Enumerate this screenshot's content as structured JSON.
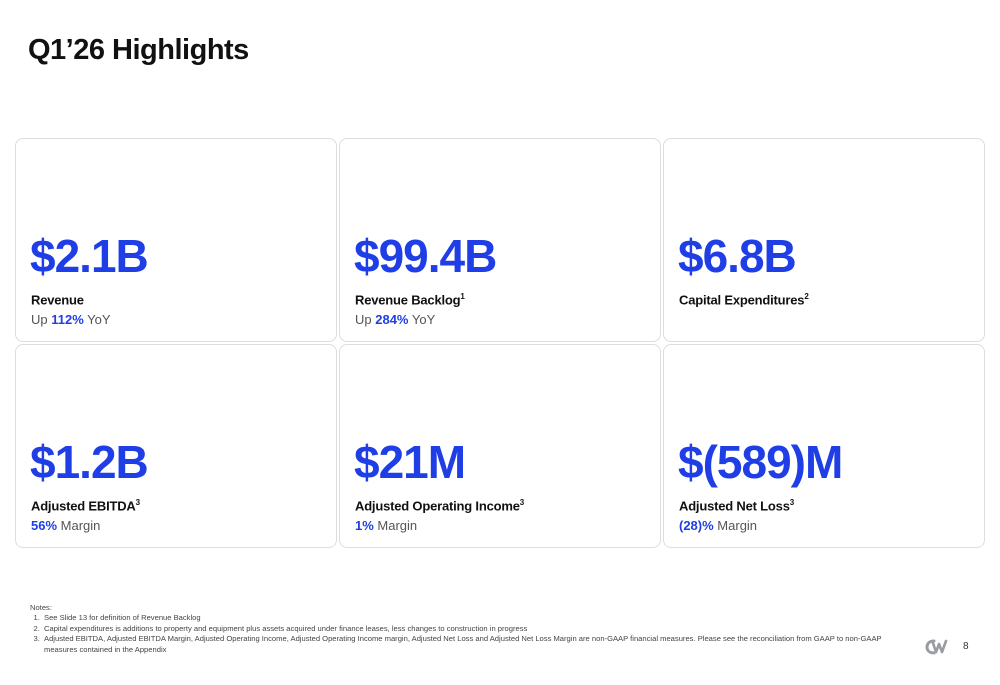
{
  "page": {
    "title": "Q1’26 Highlights",
    "number": "8"
  },
  "metrics": [
    {
      "value": "$2.1B",
      "label": "Revenue",
      "sup": "",
      "sub_prefix": "Up ",
      "sub_highlight": "112%",
      "sub_suffix": " YoY"
    },
    {
      "value": "$99.4B",
      "label": "Revenue Backlog",
      "sup": "1",
      "sub_prefix": "Up ",
      "sub_highlight": "284%",
      "sub_suffix": " YoY"
    },
    {
      "value": "$6.8B",
      "label": "Capital Expenditures",
      "sup": "2",
      "sub_prefix": "",
      "sub_highlight": "",
      "sub_suffix": ""
    },
    {
      "value": "$1.2B",
      "label": "Adjusted EBITDA",
      "sup": "3",
      "sub_prefix": "",
      "sub_highlight": "56%",
      "sub_suffix": " Margin"
    },
    {
      "value": "$21M",
      "label": "Adjusted Operating Income",
      "sup": "3",
      "sub_prefix": "",
      "sub_highlight": "1%",
      "sub_suffix": " Margin"
    },
    {
      "value": "$(589)M",
      "label": "Adjusted Net Loss",
      "sup": "3",
      "sub_prefix": "",
      "sub_highlight": "(28)%",
      "sub_suffix": " Margin"
    }
  ],
  "notes": {
    "heading": "Notes:",
    "items": [
      "See Slide 13 for definition of Revenue Backlog",
      "Capital expenditures is additions to property and equipment plus assets acquired under finance leases, less changes to construction in progress",
      "Adjusted EBITDA, Adjusted EBITDA Margin, Adjusted Operating Income, Adjusted Operating Income margin, Adjusted Net Loss and Adjusted Net Loss Margin are non-GAAP financial measures. Please see the reconciliation from GAAP to non-GAAP measures contained in the Appendix"
    ]
  },
  "colors": {
    "accent": "#1f3ee6",
    "card_border": "#dcdde2"
  },
  "logo": {
    "icon": "cw-logo-icon"
  }
}
